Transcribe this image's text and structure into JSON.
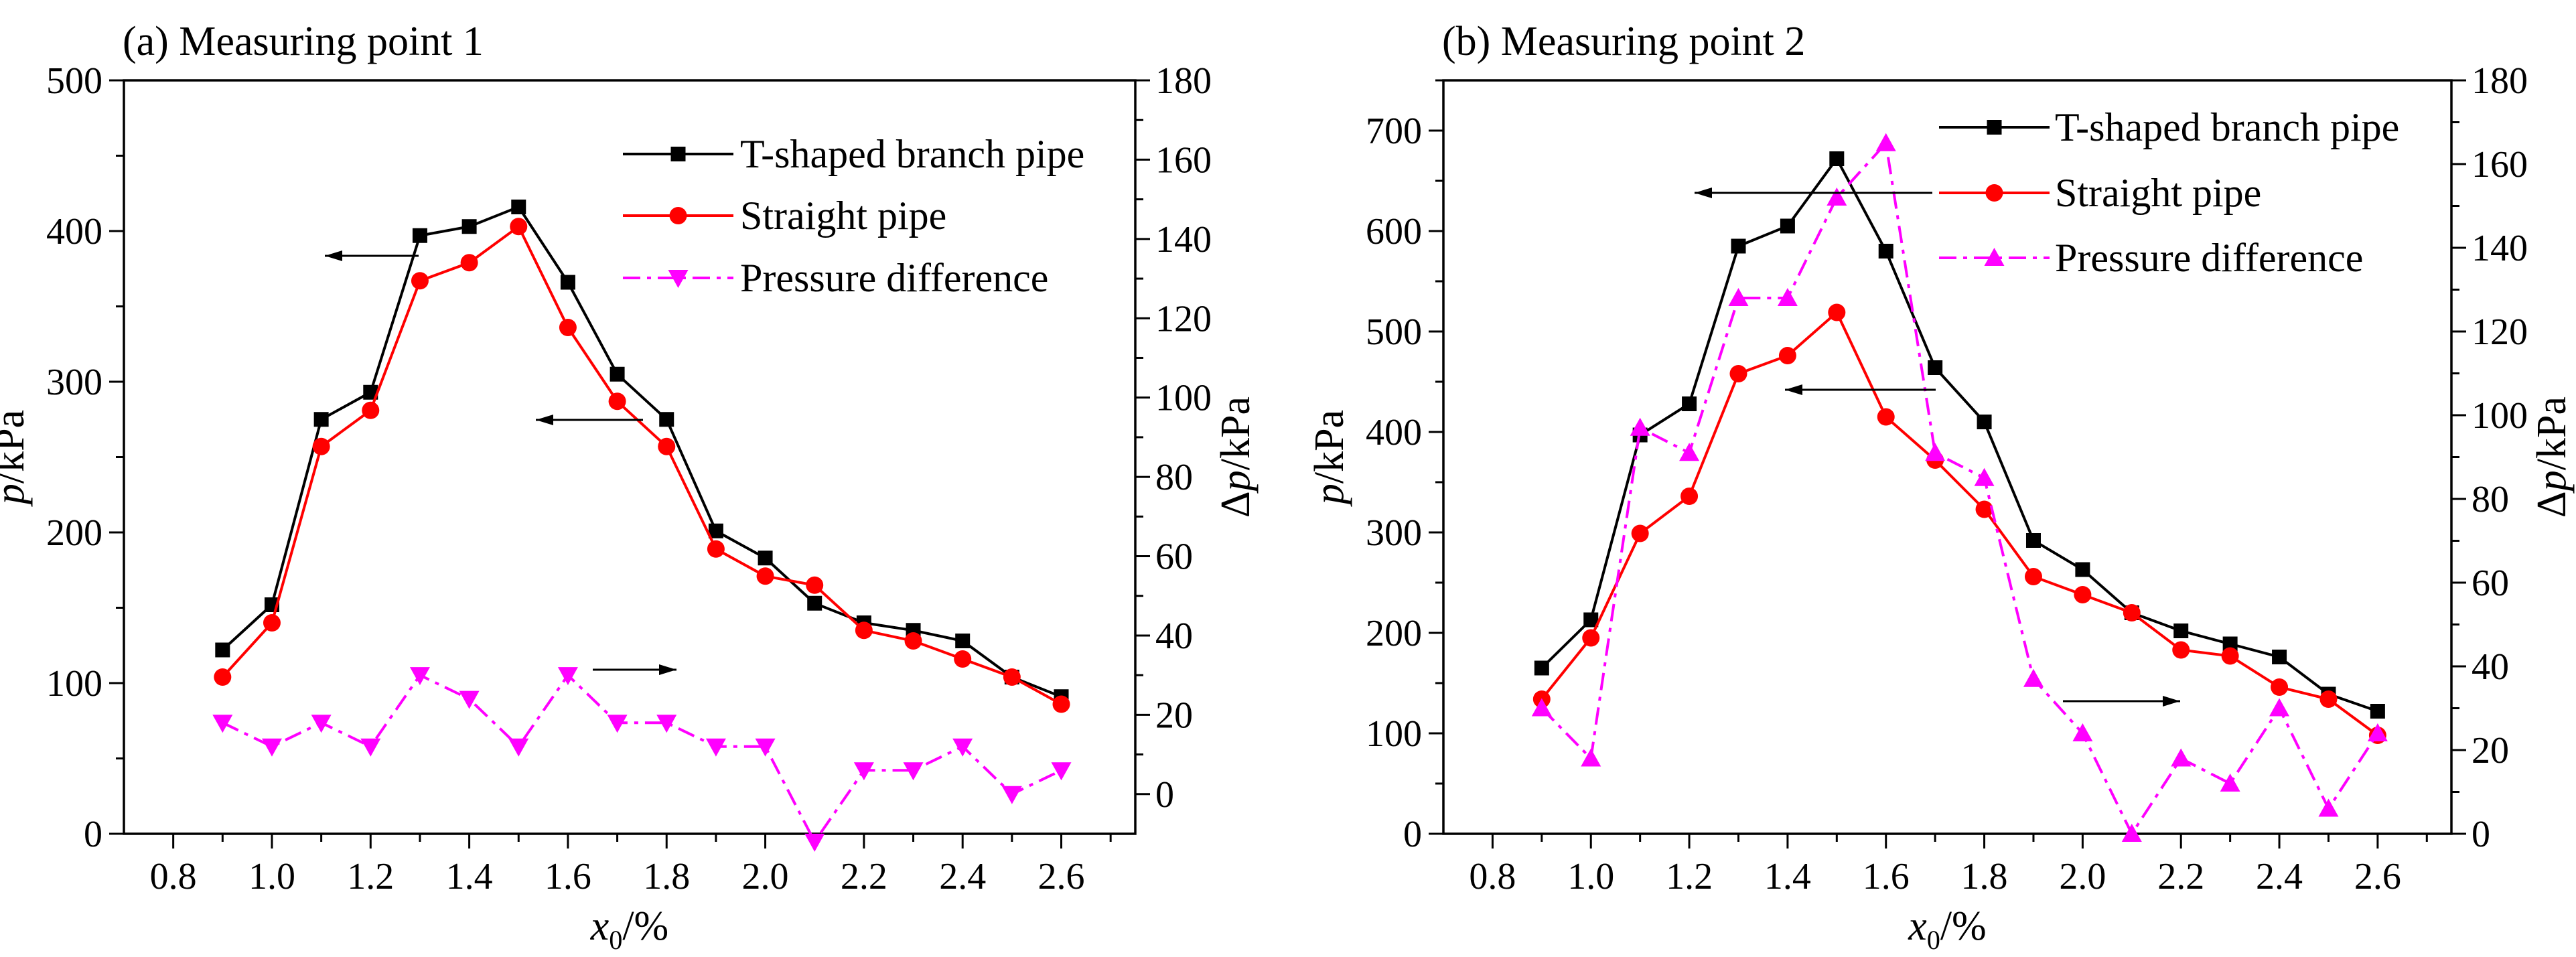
{
  "chart_data": [
    {
      "type": "line",
      "title": "(a) Measuring point 1",
      "xlabel": "x0/%",
      "ylabel": "p/kPa",
      "y2label": "Δp/kPa",
      "xlim": [
        0.7,
        2.75
      ],
      "ylim": [
        0,
        500
      ],
      "y2lim": [
        -10,
        180
      ],
      "x_ticks": [
        "0.8",
        "1.0",
        "1.2",
        "1.4",
        "1.6",
        "1.8",
        "2.0",
        "2.2",
        "2.4",
        "2.6"
      ],
      "y_ticks": [
        "0",
        "100",
        "200",
        "300",
        "400",
        "500"
      ],
      "y2_ticks": [
        "0",
        "20",
        "40",
        "60",
        "80",
        "100",
        "120",
        "140",
        "160",
        "180"
      ],
      "legend_position": "top-right",
      "x": [
        0.9,
        1.0,
        1.1,
        1.2,
        1.3,
        1.4,
        1.5,
        1.6,
        1.7,
        1.8,
        1.9,
        2.0,
        2.1,
        2.2,
        2.3,
        2.4,
        2.5,
        2.6
      ],
      "series": [
        {
          "name": "T-shaped branch pipe",
          "axis": "left",
          "color": "#000000",
          "marker": "square",
          "values": [
            122,
            152,
            275,
            293,
            397,
            403,
            416,
            366,
            305,
            275,
            201,
            183,
            153,
            140,
            135,
            128,
            104,
            91
          ]
        },
        {
          "name": "Straight pipe",
          "axis": "left",
          "color": "#ff0000",
          "marker": "circle",
          "values": [
            104,
            140,
            257,
            281,
            367,
            379,
            403,
            336,
            287,
            257,
            189,
            171,
            165,
            135,
            128,
            116,
            104,
            86
          ]
        },
        {
          "name": "Pressure difference",
          "axis": "right",
          "color": "#ff00ff",
          "marker": "triangle-down",
          "dash": "dash-dot",
          "values": [
            18,
            12,
            18,
            12,
            30,
            24,
            12,
            30,
            18,
            18,
            12,
            12,
            -12,
            6,
            6,
            12,
            0,
            6
          ]
        }
      ],
      "annotations": [
        "arrow-left to p axis",
        "arrow-left to p axis",
        "arrow-right to Δp axis"
      ]
    },
    {
      "type": "line",
      "title": "(b) Measuring point 2",
      "xlabel": "x0/%",
      "ylabel": "p/kPa",
      "y2label": "Δp/kPa",
      "xlim": [
        0.7,
        2.75
      ],
      "ylim": [
        0,
        750
      ],
      "y2lim": [
        0,
        180
      ],
      "x_ticks": [
        "0.8",
        "1.0",
        "1.2",
        "1.4",
        "1.6",
        "1.8",
        "2.0",
        "2.2",
        "2.4",
        "2.6"
      ],
      "y_ticks": [
        "0",
        "100",
        "200",
        "300",
        "400",
        "500",
        "600",
        "700"
      ],
      "y2_ticks": [
        "0",
        "20",
        "40",
        "60",
        "80",
        "100",
        "120",
        "140",
        "160",
        "180"
      ],
      "legend_position": "top-right",
      "x": [
        0.9,
        1.0,
        1.1,
        1.2,
        1.3,
        1.4,
        1.5,
        1.6,
        1.7,
        1.8,
        1.9,
        2.0,
        2.1,
        2.2,
        2.3,
        2.4,
        2.5,
        2.6
      ],
      "series": [
        {
          "name": "T-shaped branch pipe",
          "axis": "left",
          "color": "#000000",
          "marker": "square",
          "values": [
            165,
            213,
            397,
            428,
            585,
            605,
            672,
            580,
            464,
            410,
            292,
            263,
            220,
            202,
            189,
            176,
            139,
            122
          ]
        },
        {
          "name": "Straight pipe",
          "axis": "left",
          "color": "#ff0000",
          "marker": "circle",
          "values": [
            134,
            195,
            299,
            336,
            458,
            476,
            519,
            415,
            372,
            323,
            256,
            238,
            220,
            183,
            177,
            146,
            134,
            98
          ]
        },
        {
          "name": "Pressure difference",
          "axis": "right",
          "color": "#ff00ff",
          "marker": "triangle-up",
          "dash": "dash-dot",
          "values": [
            30,
            18,
            97,
            91,
            128,
            128,
            152,
            165,
            91,
            85,
            37,
            24,
            0,
            18,
            12,
            30,
            6,
            24
          ]
        }
      ],
      "annotations": [
        "arrow-left to p axis",
        "arrow-left to p axis",
        "arrow-right to Δp axis"
      ]
    }
  ]
}
